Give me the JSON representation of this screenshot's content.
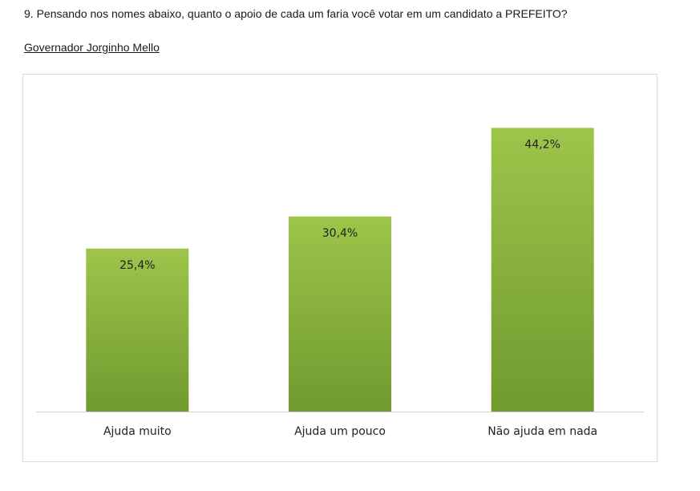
{
  "question": "9. Pensando nos nomes abaixo, quanto o apoio de cada um faria você votar em um candidato a PREFEITO?",
  "subtitle": "Governador Jorginho Mello",
  "colors": {
    "bar_top": "#9dc54a",
    "bar_bottom": "#6f9a2f",
    "axis": "#c9d3dc"
  },
  "chart_data": {
    "type": "bar",
    "categories": [
      "Ajuda muito",
      "Ajuda um pouco",
      "Não ajuda em nada"
    ],
    "values": [
      25.4,
      30.4,
      44.2
    ],
    "data_labels": [
      "25,4%",
      "30,4%",
      "44,2%"
    ],
    "ylim": [
      0,
      50
    ],
    "grid": false,
    "legend": "none"
  }
}
